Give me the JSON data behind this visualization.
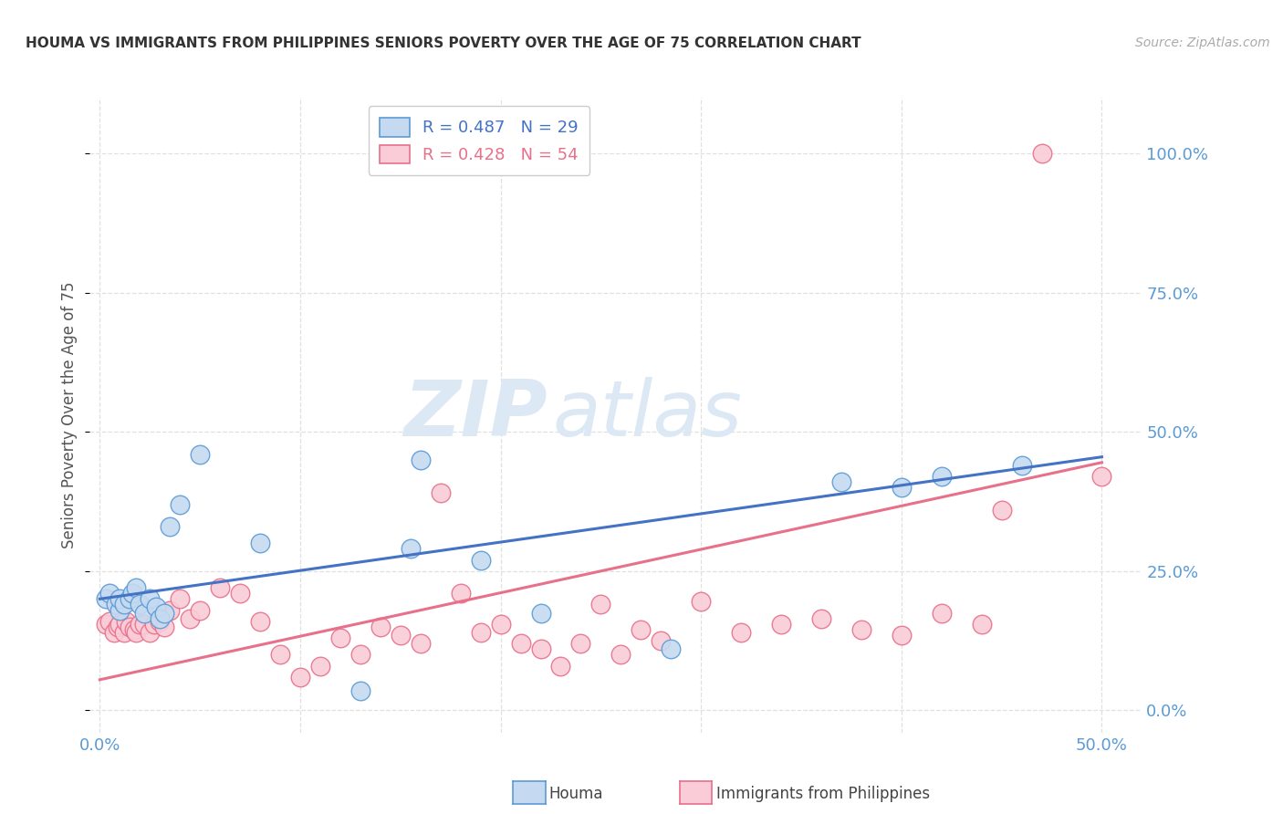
{
  "title": "HOUMA VS IMMIGRANTS FROM PHILIPPINES SENIORS POVERTY OVER THE AGE OF 75 CORRELATION CHART",
  "source": "Source: ZipAtlas.com",
  "ylabel": "Seniors Poverty Over the Age of 75",
  "xlim": [
    -0.005,
    0.52
  ],
  "ylim": [
    -0.04,
    1.1
  ],
  "ytick_values": [
    0.0,
    0.25,
    0.5,
    0.75,
    1.0
  ],
  "xtick_values": [
    0.0,
    0.1,
    0.2,
    0.3,
    0.4,
    0.5
  ],
  "background_color": "#ffffff",
  "grid_color": "#e0e0e0",
  "watermark_zip": "ZIP",
  "watermark_atlas": "atlas",
  "houma_color": "#c5daf0",
  "houma_edge_color": "#5b9bd5",
  "philippines_color": "#f9ccd8",
  "philippines_edge_color": "#e8708a",
  "houma_line_color": "#4472c4",
  "philippines_line_color": "#e8708a",
  "legend_R_houma": "R = 0.487",
  "legend_N_houma": "N = 29",
  "legend_R_phil": "R = 0.428",
  "legend_N_phil": "N = 54",
  "houma_x": [
    0.003,
    0.005,
    0.008,
    0.01,
    0.01,
    0.012,
    0.015,
    0.016,
    0.018,
    0.02,
    0.022,
    0.025,
    0.028,
    0.03,
    0.032,
    0.035,
    0.04,
    0.05,
    0.08,
    0.13,
    0.155,
    0.16,
    0.19,
    0.22,
    0.285,
    0.37,
    0.4,
    0.42,
    0.46
  ],
  "houma_y": [
    0.2,
    0.21,
    0.19,
    0.18,
    0.2,
    0.19,
    0.2,
    0.21,
    0.22,
    0.19,
    0.175,
    0.2,
    0.185,
    0.165,
    0.175,
    0.33,
    0.37,
    0.46,
    0.3,
    0.035,
    0.29,
    0.45,
    0.27,
    0.175,
    0.11,
    0.41,
    0.4,
    0.42,
    0.44
  ],
  "philippines_x": [
    0.003,
    0.005,
    0.007,
    0.009,
    0.01,
    0.012,
    0.013,
    0.015,
    0.017,
    0.018,
    0.02,
    0.022,
    0.025,
    0.027,
    0.03,
    0.032,
    0.035,
    0.04,
    0.045,
    0.05,
    0.06,
    0.07,
    0.08,
    0.09,
    0.1,
    0.11,
    0.12,
    0.13,
    0.14,
    0.15,
    0.16,
    0.17,
    0.18,
    0.19,
    0.2,
    0.21,
    0.22,
    0.23,
    0.24,
    0.25,
    0.26,
    0.27,
    0.28,
    0.3,
    0.32,
    0.34,
    0.36,
    0.38,
    0.4,
    0.42,
    0.44,
    0.45,
    0.47,
    0.5
  ],
  "philippines_y": [
    0.155,
    0.16,
    0.14,
    0.15,
    0.155,
    0.14,
    0.16,
    0.15,
    0.145,
    0.14,
    0.155,
    0.155,
    0.14,
    0.155,
    0.16,
    0.15,
    0.18,
    0.2,
    0.165,
    0.18,
    0.22,
    0.21,
    0.16,
    0.1,
    0.06,
    0.08,
    0.13,
    0.1,
    0.15,
    0.135,
    0.12,
    0.39,
    0.21,
    0.14,
    0.155,
    0.12,
    0.11,
    0.08,
    0.12,
    0.19,
    0.1,
    0.145,
    0.125,
    0.195,
    0.14,
    0.155,
    0.165,
    0.145,
    0.135,
    0.175,
    0.155,
    0.36,
    1.0,
    0.42
  ],
  "houma_trend_x": [
    0.0,
    0.5
  ],
  "houma_trend_y": [
    0.2,
    0.455
  ],
  "philippines_trend_x": [
    0.0,
    0.5
  ],
  "philippines_trend_y": [
    0.055,
    0.445
  ]
}
